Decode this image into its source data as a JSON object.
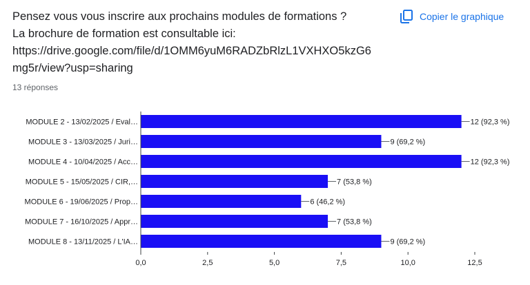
{
  "question": {
    "lines": [
      "Pensez vous vous inscrire aux prochains modules de formations ?",
      "La brochure de formation est consultable ici:",
      "https://drive.google.com/file/d/1OMM6yuM6RADZbRlzL1VXHXO5kzG6",
      "mg5r/view?usp=sharing"
    ],
    "responses": "13 réponses"
  },
  "copy_button": {
    "label": "Copier le graphique",
    "icon": "copy-icon"
  },
  "colors": {
    "bar": "#1a0ff5",
    "accent": "#1a73e8",
    "axis": "#3c4043",
    "label": "#202124"
  },
  "chart_data": {
    "type": "bar",
    "orientation": "horizontal",
    "categories": [
      "MODULE 2 - 13/02/2025 / Eval…",
      "MODULE 3 - 13/03/2025 / Juri…",
      "MODULE 4 - 10/04/2025 / Acc…",
      "MODULE 5 - 15/05/2025 / CIR,…",
      "MODULE 6 - 19/06/2025 / Prop…",
      "MODULE 7 - 16/10/2025 / Appr…",
      "MODULE 8 - 13/11/2025 / L'IA…"
    ],
    "values": [
      12,
      9,
      12,
      7,
      6,
      7,
      9
    ],
    "data_labels": [
      "12 (92,3 %)",
      "9 (69,2 %)",
      "12 (92,3 %)",
      "7 (53,8 %)",
      "6 (46,2 %)",
      "7 (53,8 %)",
      "9 (69,2 %)"
    ],
    "xlim": [
      0,
      12.5
    ],
    "xticks": [
      0,
      2.5,
      5,
      7.5,
      10,
      12.5
    ],
    "xtick_labels": [
      "0,0",
      "2,5",
      "5,0",
      "7,5",
      "10,0",
      "12,5"
    ],
    "grid": false
  }
}
